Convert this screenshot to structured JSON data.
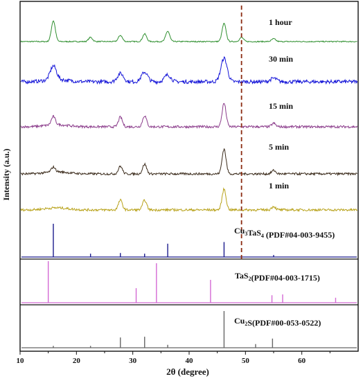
{
  "chart_data": {
    "type": "line",
    "xlabel": "2θ (degree)",
    "ylabel": "Intensity (a.u.)",
    "xlim": [
      10,
      70
    ],
    "x_ticks": [
      "10",
      "20",
      "30",
      "40",
      "50",
      "60"
    ],
    "marker_line_x": 49.3,
    "marker_line_color": "#8b2a10",
    "series": [
      {
        "name": "1 hour",
        "color": "#2f8f2f",
        "peaks": [
          [
            15.9,
            30
          ],
          [
            22.5,
            6
          ],
          [
            27.8,
            9
          ],
          [
            32.1,
            11
          ],
          [
            36.2,
            15
          ],
          [
            46.2,
            26
          ],
          [
            49.3,
            6
          ],
          [
            55.0,
            4
          ]
        ]
      },
      {
        "name": "30 min",
        "color": "#1414d8",
        "peaks": [
          [
            15.9,
            20
          ],
          [
            27.8,
            12
          ],
          [
            32.1,
            14
          ],
          [
            36.2,
            10
          ],
          [
            46.2,
            34
          ],
          [
            55.0,
            5
          ]
        ]
      },
      {
        "name": "15 min",
        "color": "#8a3a8a",
        "peaks": [
          [
            15.9,
            12
          ],
          [
            27.8,
            14
          ],
          [
            32.1,
            16
          ],
          [
            46.2,
            34
          ],
          [
            55.0,
            5
          ]
        ]
      },
      {
        "name": "5 min",
        "color": "#3a2a1a",
        "peaks": [
          [
            15.9,
            7
          ],
          [
            27.8,
            11
          ],
          [
            32.1,
            14
          ],
          [
            46.2,
            36
          ],
          [
            55.0,
            5
          ]
        ]
      },
      {
        "name": "1 min",
        "color": "#b8a21a",
        "peaks": [
          [
            27.8,
            14
          ],
          [
            32.1,
            14
          ],
          [
            46.2,
            30
          ],
          [
            55.0,
            5
          ]
        ]
      }
    ],
    "references": [
      {
        "name": "Cu3TaS4",
        "label_main": "Cu",
        "label_sub1": "3",
        "label_mid": "TaS",
        "label_sub2": "4",
        "label_tail": " (PDF#04-003-9455)",
        "color": "#1a1a8c",
        "sticks": [
          [
            15.9,
            1.0
          ],
          [
            22.5,
            0.1
          ],
          [
            27.8,
            0.12
          ],
          [
            32.1,
            0.1
          ],
          [
            36.2,
            0.4
          ],
          [
            46.2,
            0.45
          ],
          [
            49.3,
            0.05
          ],
          [
            55.0,
            0.06
          ]
        ]
      },
      {
        "name": "TaS2",
        "label_main": "TaS",
        "label_sub1": "2",
        "label_mid": "",
        "label_sub2": "",
        "label_tail": "(PDF#04-003-1715)",
        "color": "#d46ad4",
        "sticks": [
          [
            15.0,
            1.0
          ],
          [
            30.6,
            0.35
          ],
          [
            34.2,
            0.95
          ],
          [
            43.8,
            0.55
          ],
          [
            54.7,
            0.18
          ],
          [
            56.6,
            0.2
          ],
          [
            66.0,
            0.12
          ]
        ]
      },
      {
        "name": "Cu2S",
        "label_main": "Cu",
        "label_sub1": "2",
        "label_mid": "S",
        "label_sub2": "",
        "label_tail": "(PDF#00-053-0522)",
        "color": "#666666",
        "sticks": [
          [
            15.9,
            0.05
          ],
          [
            22.5,
            0.05
          ],
          [
            27.8,
            0.28
          ],
          [
            32.1,
            0.3
          ],
          [
            36.2,
            0.08
          ],
          [
            46.2,
            1.0
          ],
          [
            51.8,
            0.1
          ],
          [
            54.8,
            0.25
          ]
        ]
      }
    ]
  }
}
